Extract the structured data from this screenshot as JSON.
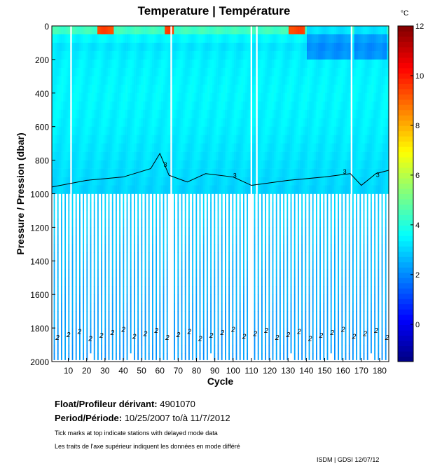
{
  "title": "Temperature | Température",
  "chart_data": {
    "type": "heatmap",
    "title": "Temperature | Température",
    "xlabel": "Cycle",
    "ylabel": "Pressure / Pression (dbar)",
    "xlim": [
      1,
      185
    ],
    "ylim": [
      2000,
      0
    ],
    "xticks": [
      10,
      20,
      30,
      40,
      50,
      60,
      70,
      80,
      90,
      100,
      110,
      120,
      130,
      140,
      150,
      160,
      170,
      180
    ],
    "yticks": [
      0,
      200,
      400,
      600,
      800,
      1000,
      1200,
      1400,
      1600,
      1800,
      2000
    ],
    "colorbar": {
      "unit": "°C",
      "range": [
        -1.5,
        12
      ],
      "ticks": [
        0,
        2,
        4,
        6,
        8,
        10,
        12
      ]
    },
    "missing_cycles": [
      11,
      66,
      110,
      113,
      165
    ],
    "typical_profile": {
      "pressure": [
        0,
        50,
        100,
        200,
        400,
        600,
        800,
        1000,
        1400,
        1800,
        2000
      ],
      "temperature": [
        5,
        3.8,
        3.2,
        3.4,
        3.5,
        3.4,
        3.2,
        3.0,
        2.6,
        2.3,
        2.2
      ]
    },
    "contour_3C_pressure": [
      {
        "cycle": 1,
        "p": 960
      },
      {
        "cycle": 20,
        "p": 920
      },
      {
        "cycle": 40,
        "p": 900
      },
      {
        "cycle": 55,
        "p": 850
      },
      {
        "cycle": 60,
        "p": 760
      },
      {
        "cycle": 65,
        "p": 890
      },
      {
        "cycle": 75,
        "p": 930
      },
      {
        "cycle": 85,
        "p": 880
      },
      {
        "cycle": 100,
        "p": 900
      },
      {
        "cycle": 110,
        "p": 950
      },
      {
        "cycle": 130,
        "p": 920
      },
      {
        "cycle": 150,
        "p": 900
      },
      {
        "cycle": 164,
        "p": 880
      },
      {
        "cycle": 170,
        "p": 950
      },
      {
        "cycle": 178,
        "p": 880
      },
      {
        "cycle": 185,
        "p": 860
      }
    ],
    "contour_label": "3",
    "deep_label": "2"
  },
  "info": {
    "float_label": "Float/Profileur dérivant:",
    "float_id": "4901070",
    "period_label": "Period/Période:",
    "period_value": "10/25/2007  to/à  11/7/2012",
    "note_en": "Tick marks at top indicate stations with delayed mode data",
    "note_fr": "Les traits de l'axe supérieur indiquent les données en mode différé",
    "credit": "ISDM | GDSI  12/07/12"
  }
}
